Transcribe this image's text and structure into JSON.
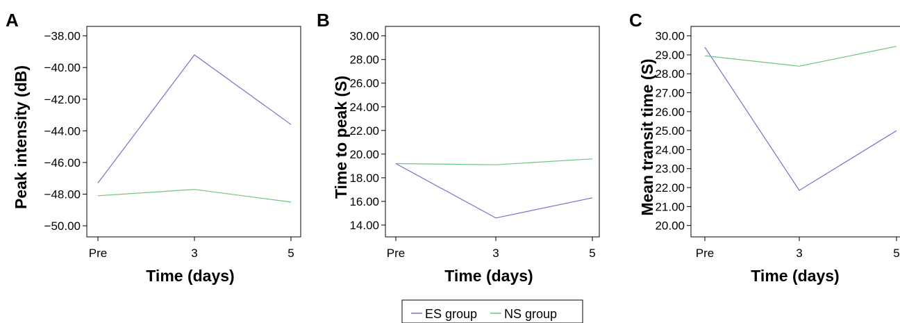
{
  "legend": {
    "items": [
      {
        "label": "ES group",
        "color": "#6f74c8"
      },
      {
        "label": "NS group",
        "color": "#6cc47c"
      }
    ]
  },
  "chart_data": [
    {
      "type": "line",
      "panel": "A",
      "categories": [
        "Pre",
        "3",
        "5"
      ],
      "xlabel": "Time (days)",
      "ylabel": "Peak intensity (dB)",
      "ylim": [
        -50.7,
        -37.4
      ],
      "yticks": [
        "-50.00",
        "-48.00",
        "-46.00",
        "-44.00",
        "-42.00",
        "-40.00",
        "-38.00"
      ],
      "series": [
        {
          "name": "ES group",
          "color": "#6f74c8",
          "values": [
            -47.3,
            -39.2,
            -43.6
          ]
        },
        {
          "name": "NS group",
          "color": "#6cc47c",
          "values": [
            -48.1,
            -47.7,
            -48.5
          ]
        }
      ]
    },
    {
      "type": "line",
      "panel": "B",
      "categories": [
        "Pre",
        "3",
        "5"
      ],
      "xlabel": "Time (days)",
      "ylabel": "Time to peak (S)",
      "ylim": [
        13.0,
        30.8
      ],
      "yticks": [
        "14.00",
        "16.00",
        "18.00",
        "20.00",
        "22.00",
        "24.00",
        "26.00",
        "28.00",
        "30.00"
      ],
      "series": [
        {
          "name": "ES group",
          "color": "#6f74c8",
          "values": [
            19.2,
            14.6,
            16.3
          ]
        },
        {
          "name": "NS group",
          "color": "#6cc47c",
          "values": [
            19.2,
            19.1,
            19.6
          ]
        }
      ]
    },
    {
      "type": "line",
      "panel": "C",
      "categories": [
        "Pre",
        "3",
        "5"
      ],
      "xlabel": "Time (days)",
      "ylabel": "Mean transit time (S)",
      "ylim": [
        19.4,
        30.5
      ],
      "yticks": [
        "20.00",
        "21.00",
        "22.00",
        "23.00",
        "24.00",
        "25.00",
        "26.00",
        "27.00",
        "28.00",
        "29.00",
        "30.00"
      ],
      "series": [
        {
          "name": "ES group",
          "color": "#6f74c8",
          "values": [
            29.4,
            21.85,
            25.0
          ]
        },
        {
          "name": "NS group",
          "color": "#6cc47c",
          "values": [
            28.95,
            28.4,
            29.45
          ]
        }
      ]
    }
  ]
}
